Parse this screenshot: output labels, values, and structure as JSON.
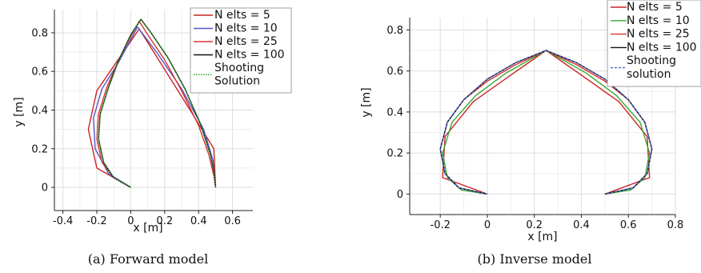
{
  "chart_data": [
    {
      "type": "line",
      "caption": "(a)  Forward model",
      "xlabel": "x [m]",
      "ylabel": "y [m]",
      "xlim": [
        -0.45,
        0.72
      ],
      "ylim": [
        -0.12,
        0.92
      ],
      "xticks": [
        -0.4,
        -0.2,
        0,
        0.2,
        0.4,
        0.6
      ],
      "xtick_labels": [
        "-0.4",
        "-0.2",
        "0",
        "0.2",
        "0.4",
        "0.6"
      ],
      "yticks": [
        0,
        0.2,
        0.4,
        0.6,
        0.8
      ],
      "ytick_labels": [
        "0",
        "0.2",
        "0.4",
        "0.6",
        "0.8"
      ],
      "grid": true,
      "legend_position": "top-right",
      "series": [
        {
          "name": "N elts = 5",
          "color": "#cc2222",
          "style": "solid",
          "x": [
            0,
            -0.2,
            -0.25,
            -0.2,
            0.05,
            0.35,
            0.49,
            0.5
          ],
          "y": [
            0,
            0.1,
            0.3,
            0.5,
            0.82,
            0.4,
            0.2,
            0
          ]
        },
        {
          "name": "N elts = 10",
          "color": "#5555cc",
          "style": "solid",
          "x": [
            0,
            -0.13,
            -0.21,
            -0.22,
            -0.17,
            -0.07,
            0.04,
            0.16,
            0.3,
            0.43,
            0.485,
            0.5
          ],
          "y": [
            0,
            0.07,
            0.2,
            0.36,
            0.51,
            0.65,
            0.83,
            0.69,
            0.51,
            0.3,
            0.14,
            0
          ]
        },
        {
          "name": "N elts = 25",
          "color": "#dd3333",
          "style": "solid",
          "x": [
            0,
            -0.1,
            -0.17,
            -0.2,
            -0.19,
            -0.14,
            -0.07,
            0,
            0.05,
            0.1,
            0.2,
            0.3,
            0.4,
            0.46,
            0.49,
            0.5
          ],
          "y": [
            0,
            0.05,
            0.13,
            0.25,
            0.38,
            0.52,
            0.66,
            0.78,
            0.86,
            0.79,
            0.66,
            0.5,
            0.32,
            0.17,
            0.06,
            0
          ]
        },
        {
          "name": "N elts = 100",
          "color": "#111111",
          "style": "solid",
          "x": [
            0,
            -0.1,
            -0.16,
            -0.19,
            -0.18,
            -0.13,
            -0.07,
            0,
            0.06,
            0.12,
            0.22,
            0.32,
            0.41,
            0.47,
            0.495,
            0.5
          ],
          "y": [
            0,
            0.05,
            0.13,
            0.25,
            0.38,
            0.52,
            0.66,
            0.79,
            0.87,
            0.8,
            0.67,
            0.51,
            0.33,
            0.17,
            0.06,
            0
          ]
        },
        {
          "name": "Shooting Solution",
          "color": "#33aa33",
          "style": "dotted",
          "x": [
            0,
            -0.1,
            -0.16,
            -0.19,
            -0.18,
            -0.13,
            -0.07,
            0,
            0.06,
            0.12,
            0.22,
            0.32,
            0.41,
            0.47,
            0.495,
            0.5
          ],
          "y": [
            0,
            0.05,
            0.13,
            0.25,
            0.38,
            0.52,
            0.66,
            0.79,
            0.87,
            0.8,
            0.67,
            0.51,
            0.33,
            0.17,
            0.06,
            0
          ]
        }
      ],
      "legend": [
        "N elts = 5",
        "N elts = 10",
        "N elts = 25",
        "N elts = 100",
        "Shooting",
        "Solution"
      ]
    },
    {
      "type": "line",
      "caption": "(b)  Inverse model",
      "xlabel": "x [m]",
      "ylabel": "y [m]",
      "xlim": [
        -0.33,
        0.8
      ],
      "ylim": [
        -0.1,
        0.86
      ],
      "xticks": [
        -0.2,
        0,
        0.2,
        0.4,
        0.6,
        0.8
      ],
      "xtick_labels": [
        "-0.2",
        "0",
        "0.2",
        "0.4",
        "0.6",
        "0.8"
      ],
      "yticks": [
        0,
        0.2,
        0.4,
        0.6,
        0.8
      ],
      "ytick_labels": [
        "0",
        "0.2",
        "0.4",
        "0.6",
        "0.8"
      ],
      "grid": true,
      "legend_position": "top-right",
      "series": [
        {
          "name": "N elts = 5",
          "color": "#cc2222",
          "style": "solid",
          "x": [
            0,
            -0.19,
            -0.18,
            -0.06,
            0.1,
            0.25,
            0.4,
            0.56,
            0.68,
            0.69,
            0.5
          ],
          "y": [
            0,
            0.08,
            0.28,
            0.45,
            0.58,
            0.7,
            0.58,
            0.45,
            0.28,
            0.08,
            0
          ]
        },
        {
          "name": "N elts = 10",
          "color": "#33aa33",
          "style": "solid",
          "x": [
            0,
            -0.11,
            -0.17,
            -0.19,
            -0.15,
            -0.05,
            0.08,
            0.25,
            0.42,
            0.55,
            0.65,
            0.69,
            0.67,
            0.61,
            0.5
          ],
          "y": [
            0,
            0.02,
            0.08,
            0.2,
            0.35,
            0.48,
            0.59,
            0.7,
            0.59,
            0.48,
            0.35,
            0.2,
            0.08,
            0.02,
            0
          ]
        },
        {
          "name": "N elts = 25",
          "color": "#dd3333",
          "style": "solid",
          "x": [
            0,
            -0.12,
            -0.18,
            -0.2,
            -0.17,
            -0.1,
            0,
            0.12,
            0.25,
            0.38,
            0.5,
            0.6,
            0.67,
            0.7,
            0.68,
            0.62,
            0.5
          ],
          "y": [
            0,
            0.03,
            0.1,
            0.22,
            0.35,
            0.46,
            0.55,
            0.63,
            0.7,
            0.63,
            0.55,
            0.46,
            0.35,
            0.22,
            0.1,
            0.03,
            0
          ]
        },
        {
          "name": "N elts = 100",
          "color": "#111111",
          "style": "solid",
          "x": [
            0,
            -0.12,
            -0.18,
            -0.2,
            -0.17,
            -0.1,
            0,
            0.12,
            0.25,
            0.38,
            0.5,
            0.6,
            0.67,
            0.7,
            0.68,
            0.62,
            0.5
          ],
          "y": [
            0,
            0.03,
            0.1,
            0.22,
            0.35,
            0.46,
            0.56,
            0.64,
            0.7,
            0.64,
            0.56,
            0.46,
            0.35,
            0.22,
            0.1,
            0.03,
            0
          ]
        },
        {
          "name": "Shooting solution",
          "color": "#5566cc",
          "style": "dashed",
          "x": [
            0,
            -0.12,
            -0.18,
            -0.2,
            -0.17,
            -0.1,
            0,
            0.12,
            0.25,
            0.38,
            0.5,
            0.6,
            0.67,
            0.7,
            0.68,
            0.62,
            0.5
          ],
          "y": [
            0,
            0.03,
            0.1,
            0.22,
            0.35,
            0.46,
            0.56,
            0.64,
            0.7,
            0.64,
            0.56,
            0.46,
            0.35,
            0.22,
            0.1,
            0.03,
            0
          ]
        }
      ],
      "legend": [
        "N elts = 5",
        "N elts = 10",
        "N elts = 25",
        "N elts = 100",
        "Shooting",
        "solution"
      ]
    }
  ]
}
